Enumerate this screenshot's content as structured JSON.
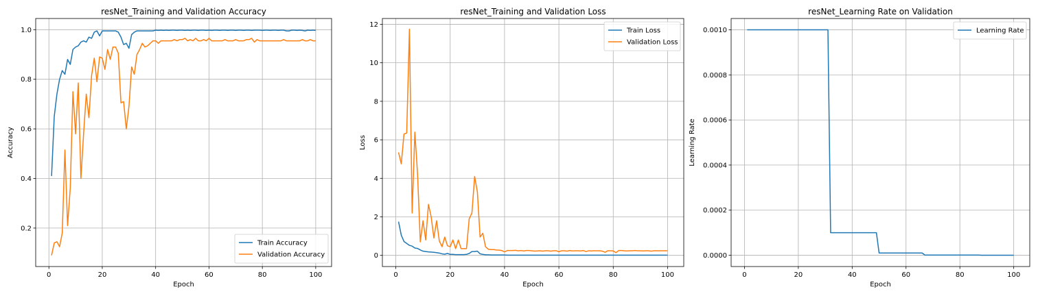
{
  "colors": {
    "train": "#1f77b4",
    "val": "#ff7f0e",
    "grid": "#b0b0b0",
    "legend_border": "#cccccc"
  },
  "chart_data": [
    {
      "type": "line",
      "title": "resNet_Training and Validation Accuracy",
      "xlabel": "Epoch",
      "ylabel": "Accuracy",
      "xlim": [
        -4.95,
        105.95
      ],
      "ylim": [
        0.045,
        1.045
      ],
      "xticks": [
        0,
        20,
        40,
        60,
        80,
        100
      ],
      "yticks": [
        0.2,
        0.4,
        0.6,
        0.8,
        1.0
      ],
      "ytick_decimals": 1,
      "legend_position": "lower-right",
      "series": [
        {
          "name": "Train Accuracy",
          "color_key": "train",
          "x_start": 1,
          "values": [
            0.41,
            0.65,
            0.74,
            0.8,
            0.835,
            0.82,
            0.88,
            0.86,
            0.92,
            0.93,
            0.935,
            0.95,
            0.955,
            0.95,
            0.97,
            0.965,
            0.99,
            0.995,
            0.975,
            0.995,
            0.995,
            0.995,
            0.995,
            0.995,
            0.995,
            0.99,
            0.97,
            0.94,
            0.945,
            0.925,
            0.98,
            0.99,
            0.995,
            0.995,
            0.995,
            0.995,
            0.995,
            0.995,
            0.995,
            0.998,
            0.997,
            0.998,
            0.997,
            0.998,
            0.997,
            0.998,
            0.998,
            0.997,
            0.998,
            0.998,
            0.997,
            0.998,
            0.997,
            0.998,
            0.998,
            0.997,
            0.998,
            0.998,
            0.997,
            0.998,
            0.997,
            0.998,
            0.998,
            0.997,
            0.998,
            0.998,
            0.997,
            0.998,
            0.998,
            0.997,
            0.998,
            0.998,
            0.997,
            0.998,
            0.998,
            0.997,
            0.998,
            0.998,
            0.998,
            0.997,
            0.998,
            0.998,
            0.997,
            0.998,
            0.998,
            0.997,
            0.998,
            0.998,
            0.995,
            0.995,
            0.998,
            0.998,
            0.997,
            0.998,
            0.997,
            0.995,
            0.998,
            0.997,
            0.998,
            0.997
          ]
        },
        {
          "name": "Validation Accuracy",
          "color_key": "val",
          "x_start": 1,
          "values": [
            0.09,
            0.14,
            0.145,
            0.125,
            0.18,
            0.515,
            0.21,
            0.36,
            0.75,
            0.58,
            0.785,
            0.4,
            0.58,
            0.74,
            0.645,
            0.815,
            0.885,
            0.79,
            0.89,
            0.885,
            0.84,
            0.92,
            0.88,
            0.93,
            0.93,
            0.905,
            0.705,
            0.71,
            0.6,
            0.69,
            0.85,
            0.82,
            0.9,
            0.92,
            0.945,
            0.93,
            0.935,
            0.945,
            0.955,
            0.955,
            0.945,
            0.955,
            0.955,
            0.955,
            0.955,
            0.955,
            0.96,
            0.955,
            0.96,
            0.96,
            0.965,
            0.955,
            0.96,
            0.955,
            0.965,
            0.955,
            0.955,
            0.96,
            0.955,
            0.965,
            0.955,
            0.955,
            0.955,
            0.955,
            0.955,
            0.96,
            0.955,
            0.955,
            0.955,
            0.96,
            0.955,
            0.955,
            0.955,
            0.96,
            0.96,
            0.965,
            0.95,
            0.96,
            0.955,
            0.955,
            0.955,
            0.955,
            0.955,
            0.955,
            0.955,
            0.955,
            0.955,
            0.96,
            0.955,
            0.955,
            0.955,
            0.955,
            0.955,
            0.955,
            0.96,
            0.955,
            0.955,
            0.96,
            0.955,
            0.955
          ]
        }
      ]
    },
    {
      "type": "line",
      "title": "resNet_Training and Validation Loss",
      "xlabel": "Epoch",
      "ylabel": "Loss",
      "xlim": [
        -4.95,
        105.95
      ],
      "ylim": [
        -0.58,
        12.3
      ],
      "xticks": [
        0,
        20,
        40,
        60,
        80,
        100
      ],
      "yticks": [
        0,
        2,
        4,
        6,
        8,
        10,
        12
      ],
      "ytick_decimals": 0,
      "legend_position": "top-right",
      "series": [
        {
          "name": "Train Loss",
          "color_key": "train",
          "x_start": 1,
          "values": [
            1.75,
            1.05,
            0.72,
            0.62,
            0.52,
            0.48,
            0.38,
            0.36,
            0.28,
            0.22,
            0.2,
            0.18,
            0.17,
            0.16,
            0.14,
            0.12,
            0.08,
            0.06,
            0.1,
            0.05,
            0.05,
            0.04,
            0.04,
            0.04,
            0.04,
            0.05,
            0.1,
            0.2,
            0.2,
            0.22,
            0.08,
            0.05,
            0.03,
            0.03,
            0.02,
            0.02,
            0.02,
            0.02,
            0.02,
            0.02,
            0.01,
            0.01,
            0.01,
            0.01,
            0.01,
            0.01,
            0.01,
            0.01,
            0.01,
            0.01,
            0.01,
            0.01,
            0.01,
            0.01,
            0.01,
            0.01,
            0.01,
            0.01,
            0.01,
            0.01,
            0.01,
            0.01,
            0.01,
            0.01,
            0.01,
            0.01,
            0.01,
            0.01,
            0.01,
            0.01,
            0.01,
            0.01,
            0.01,
            0.01,
            0.01,
            0.01,
            0.01,
            0.01,
            0.01,
            0.01,
            0.01,
            0.01,
            0.01,
            0.01,
            0.01,
            0.01,
            0.01,
            0.01,
            0.01,
            0.01,
            0.01,
            0.01,
            0.01,
            0.01,
            0.01,
            0.01,
            0.01,
            0.01,
            0.01,
            0.01
          ]
        },
        {
          "name": "Validation Loss",
          "color_key": "val",
          "x_start": 1,
          "values": [
            5.35,
            4.75,
            6.3,
            6.35,
            11.75,
            2.2,
            6.4,
            4.2,
            0.7,
            1.8,
            0.8,
            2.65,
            2.0,
            0.9,
            1.8,
            0.75,
            0.45,
            0.95,
            0.5,
            0.45,
            0.8,
            0.35,
            0.8,
            0.35,
            0.35,
            0.35,
            1.9,
            2.2,
            4.1,
            3.3,
            0.95,
            1.15,
            0.45,
            0.32,
            0.3,
            0.3,
            0.28,
            0.27,
            0.25,
            0.18,
            0.25,
            0.25,
            0.25,
            0.26,
            0.24,
            0.25,
            0.23,
            0.25,
            0.25,
            0.24,
            0.22,
            0.23,
            0.24,
            0.22,
            0.24,
            0.24,
            0.22,
            0.24,
            0.24,
            0.19,
            0.24,
            0.24,
            0.22,
            0.25,
            0.23,
            0.24,
            0.24,
            0.23,
            0.25,
            0.2,
            0.24,
            0.23,
            0.24,
            0.24,
            0.24,
            0.22,
            0.16,
            0.24,
            0.24,
            0.23,
            0.14,
            0.25,
            0.25,
            0.24,
            0.23,
            0.24,
            0.24,
            0.25,
            0.24,
            0.24,
            0.23,
            0.24,
            0.24,
            0.22,
            0.24,
            0.24,
            0.24,
            0.24,
            0.24,
            0.24
          ]
        }
      ]
    },
    {
      "type": "line",
      "title": "resNet_Learning Rate on Validation",
      "xlabel": "Epoch",
      "ylabel": "Learning Rate",
      "xlim": [
        -4.95,
        105.95
      ],
      "ylim": [
        -5e-05,
        0.00105
      ],
      "xticks": [
        0,
        20,
        40,
        60,
        80,
        100
      ],
      "yticks": [
        0.0,
        0.0002,
        0.0004,
        0.0006,
        0.0008,
        0.001
      ],
      "ytick_decimals": 4,
      "legend_position": "top-right",
      "series": [
        {
          "name": "Learning Rate",
          "color_key": "train",
          "x": [
            1,
            31,
            32,
            49,
            50,
            66,
            67,
            87,
            88,
            100
          ],
          "values": [
            0.001,
            0.001,
            0.0001,
            0.0001,
            1e-05,
            1e-05,
            1e-06,
            1e-06,
            1e-07,
            1e-07
          ]
        }
      ]
    }
  ]
}
